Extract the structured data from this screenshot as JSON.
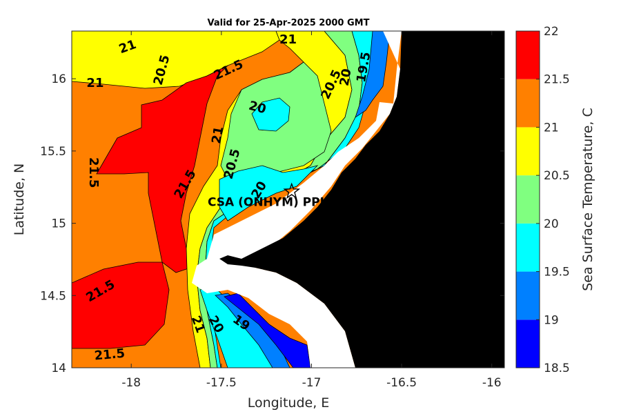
{
  "chart_data": {
    "type": "heatmap",
    "title": "Valid for 25-Apr-2025 2000 GMT",
    "xlabel": "Longitude, E",
    "ylabel": "Latitude, N",
    "xlim": [
      -18.33,
      -15.93
    ],
    "ylim": [
      14.0,
      16.33
    ],
    "x_ticks": [
      -18,
      -17.5,
      -17,
      -16.5,
      -16
    ],
    "x_tick_labels": [
      "-18",
      "-17.5",
      "-17",
      "-16.5",
      "-16"
    ],
    "y_ticks": [
      14,
      14.5,
      15,
      15.5,
      16
    ],
    "y_tick_labels": [
      "14",
      "14.5",
      "15",
      "15.5",
      "16"
    ],
    "colorbar": {
      "label": "Sea Surface Temperature, C",
      "range": [
        18.5,
        22
      ],
      "ticks": [
        18.5,
        19,
        19.5,
        20,
        20.5,
        21,
        21.5,
        22
      ],
      "tick_labels": [
        "18.5",
        "19",
        "19.5",
        "20",
        "20.5",
        "21",
        "21.5",
        "22"
      ],
      "levels": [
        {
          "range": [
            18.5,
            19
          ],
          "color": "#0000ff"
        },
        {
          "range": [
            19,
            19.5
          ],
          "color": "#0080ff"
        },
        {
          "range": [
            19.5,
            20
          ],
          "color": "#00ffff"
        },
        {
          "range": [
            20,
            20.5
          ],
          "color": "#80ff80"
        },
        {
          "range": [
            20.5,
            21
          ],
          "color": "#ffff00"
        },
        {
          "range": [
            21,
            21.5
          ],
          "color": "#ff8000"
        },
        {
          "range": [
            21.5,
            22
          ],
          "color": "#ff0000"
        }
      ]
    },
    "land_color": "#000000",
    "no_data_color": "#ffffff",
    "contour_labels": [
      {
        "text": "21",
        "lon": -18.02,
        "lat": 16.22,
        "angle": -20
      },
      {
        "text": "21",
        "lon": -18.2,
        "lat": 15.97,
        "angle": 0
      },
      {
        "text": "20.5",
        "lon": -17.83,
        "lat": 16.06,
        "angle": -75
      },
      {
        "text": "21.5",
        "lon": -17.46,
        "lat": 16.06,
        "angle": -25
      },
      {
        "text": "21",
        "lon": -17.13,
        "lat": 16.27,
        "angle": 0
      },
      {
        "text": "20.5",
        "lon": -16.89,
        "lat": 15.96,
        "angle": -65
      },
      {
        "text": "20",
        "lon": -16.81,
        "lat": 16.01,
        "angle": -80
      },
      {
        "text": "19.5",
        "lon": -16.71,
        "lat": 16.08,
        "angle": -80
      },
      {
        "text": "20",
        "lon": -17.3,
        "lat": 15.8,
        "angle": 15
      },
      {
        "text": "21",
        "lon": -17.52,
        "lat": 15.61,
        "angle": -80
      },
      {
        "text": "20.5",
        "lon": -17.44,
        "lat": 15.41,
        "angle": -75
      },
      {
        "text": "21.5",
        "lon": -18.21,
        "lat": 15.35,
        "angle": 90
      },
      {
        "text": "21.5",
        "lon": -17.7,
        "lat": 15.27,
        "angle": -60
      },
      {
        "text": "20",
        "lon": -17.29,
        "lat": 15.23,
        "angle": -60
      },
      {
        "text": "21.5",
        "lon": -18.17,
        "lat": 14.53,
        "angle": -30
      },
      {
        "text": "21",
        "lon": -17.63,
        "lat": 14.3,
        "angle": 70
      },
      {
        "text": "20",
        "lon": -17.53,
        "lat": 14.3,
        "angle": 60
      },
      {
        "text": "19",
        "lon": -17.39,
        "lat": 14.31,
        "angle": 35
      },
      {
        "text": "21.5",
        "lon": -18.12,
        "lat": 14.09,
        "angle": -5
      }
    ],
    "site": {
      "label": "CSA (ONHYM) PPL EP",
      "lon": -17.11,
      "lat": 15.22,
      "marker": "star"
    }
  }
}
